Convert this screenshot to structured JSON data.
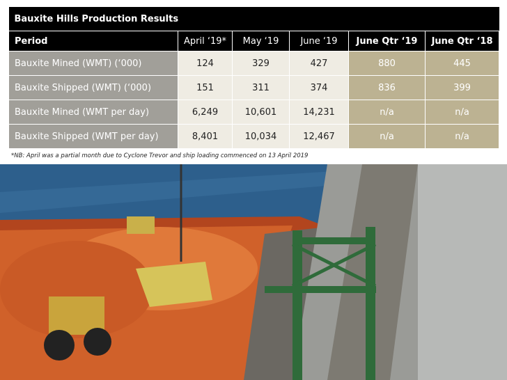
{
  "table": {
    "title": "Bauxite Hills Production Results",
    "header": [
      "Period",
      "April ‘19*",
      "May ‘19",
      "June ‘19",
      "June Qtr ‘19",
      "June Qtr ‘18"
    ],
    "rows": [
      [
        "Bauxite Mined (WMT) (‘000)",
        "124",
        "329",
        "427",
        "880",
        "445"
      ],
      [
        "Bauxite Shipped (WMT) (‘000)",
        "151",
        "311",
        "374",
        "836",
        "399"
      ],
      [
        "Bauxite Mined (WMT per day)",
        "6,249",
        "10,601",
        "14,231",
        "n/a",
        "n/a"
      ],
      [
        "Bauxite Shipped (WMT per day)",
        "8,401",
        "10,034",
        "12,467",
        "n/a",
        "n/a"
      ]
    ],
    "footnote": "*NB: April was a partial month due to Cyclone Trevor and ship loading commenced on 13 April 2019"
  }
}
